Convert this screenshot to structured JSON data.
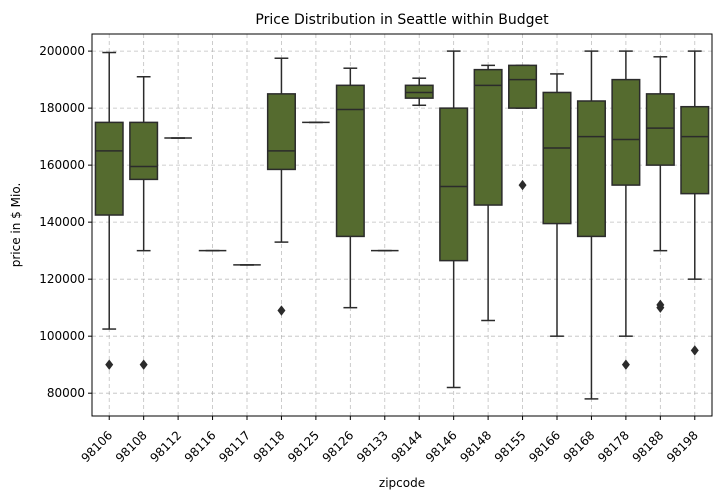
{
  "chart_data": {
    "type": "box",
    "title": "Price Distribution in Seattle within Budget",
    "xlabel": "zipcode",
    "ylabel": "price in $ Mio.",
    "ylim": [
      72000,
      206000
    ],
    "yticks": [
      80000,
      100000,
      120000,
      140000,
      160000,
      180000,
      200000
    ],
    "grid": true,
    "box_color": "#556b2f",
    "categories": [
      "98106",
      "98108",
      "98112",
      "98116",
      "98117",
      "98118",
      "98125",
      "98126",
      "98133",
      "98144",
      "98146",
      "98148",
      "98155",
      "98166",
      "98168",
      "98178",
      "98188",
      "98198"
    ],
    "boxes": [
      {
        "min": 102500,
        "q1": 142500,
        "median": 165000,
        "q3": 175000,
        "max": 199500,
        "fliers": [
          90000
        ]
      },
      {
        "min": 130000,
        "q1": 155000,
        "median": 159500,
        "q3": 175000,
        "max": 191000,
        "fliers": [
          90000
        ]
      },
      {
        "min": 169500,
        "q1": 169500,
        "median": 169500,
        "q3": 169500,
        "max": 169500,
        "fliers": []
      },
      {
        "min": 130000,
        "q1": 130000,
        "median": 130000,
        "q3": 130000,
        "max": 130000,
        "fliers": []
      },
      {
        "min": 125000,
        "q1": 125000,
        "median": 125000,
        "q3": 125000,
        "max": 125000,
        "fliers": []
      },
      {
        "min": 133000,
        "q1": 158500,
        "median": 165000,
        "q3": 185000,
        "max": 197500,
        "fliers": [
          109000
        ]
      },
      {
        "min": 175000,
        "q1": 175000,
        "median": 175000,
        "q3": 175000,
        "max": 175000,
        "fliers": []
      },
      {
        "min": 110000,
        "q1": 135000,
        "median": 179500,
        "q3": 188000,
        "max": 194000,
        "fliers": []
      },
      {
        "min": 130000,
        "q1": 130000,
        "median": 130000,
        "q3": 130000,
        "max": 130000,
        "fliers": []
      },
      {
        "min": 181000,
        "q1": 183500,
        "median": 185500,
        "q3": 188000,
        "max": 190500,
        "fliers": []
      },
      {
        "min": 82000,
        "q1": 126500,
        "median": 152500,
        "q3": 180000,
        "max": 200000,
        "fliers": []
      },
      {
        "min": 105500,
        "q1": 146000,
        "median": 188000,
        "q3": 193500,
        "max": 195000,
        "fliers": []
      },
      {
        "min": 180000,
        "q1": 180000,
        "median": 190000,
        "q3": 195000,
        "max": 195000,
        "fliers": [
          153000
        ]
      },
      {
        "min": 100000,
        "q1": 139500,
        "median": 166000,
        "q3": 185500,
        "max": 192000,
        "fliers": []
      },
      {
        "min": 78000,
        "q1": 135000,
        "median": 170000,
        "q3": 182500,
        "max": 200000,
        "fliers": []
      },
      {
        "min": 100000,
        "q1": 153000,
        "median": 169000,
        "q3": 190000,
        "max": 200000,
        "fliers": [
          90000
        ]
      },
      {
        "min": 130000,
        "q1": 160000,
        "median": 173000,
        "q3": 185000,
        "max": 198000,
        "fliers": [
          110000,
          111000
        ]
      },
      {
        "min": 120000,
        "q1": 150000,
        "median": 170000,
        "q3": 180500,
        "max": 200000,
        "fliers": [
          95000
        ]
      }
    ]
  }
}
